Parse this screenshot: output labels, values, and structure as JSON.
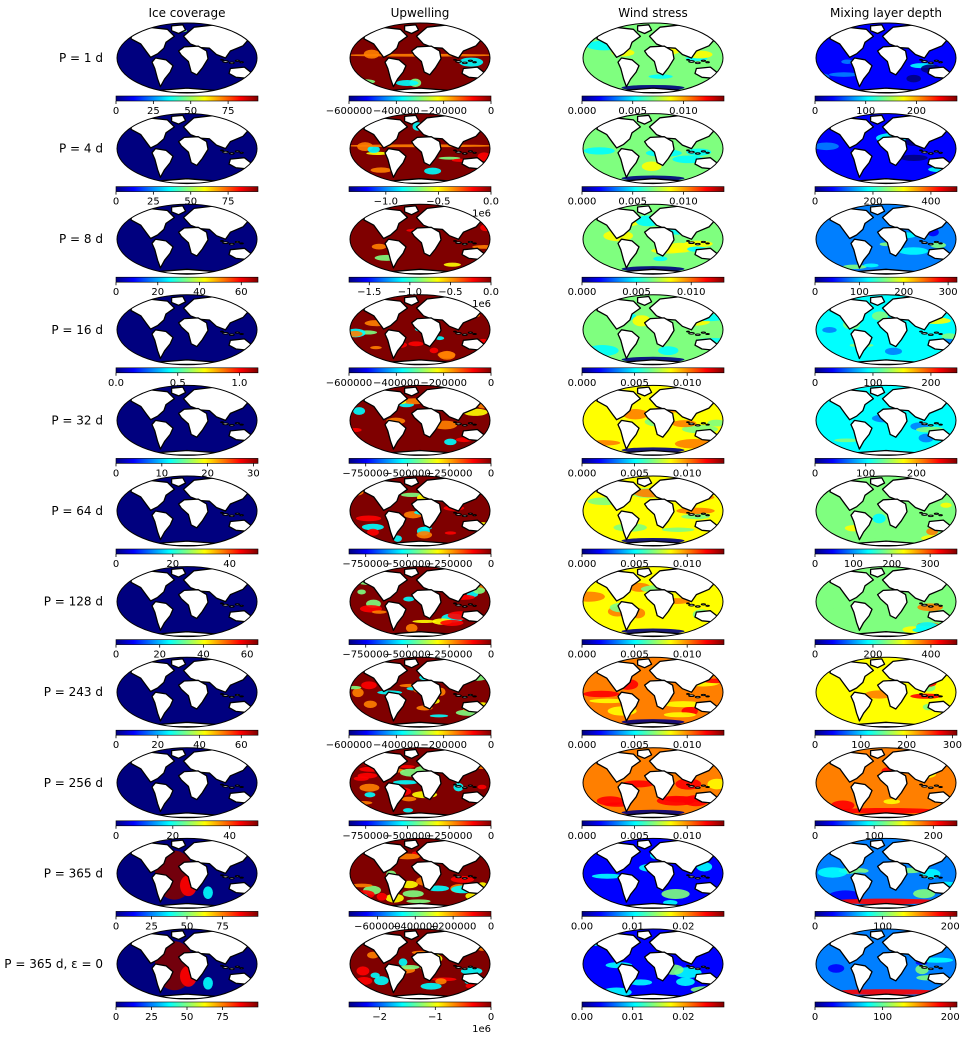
{
  "figure": {
    "columns": [
      {
        "title": "Ice coverage",
        "kind": "ice"
      },
      {
        "title": "Upwelling",
        "kind": "upwelling"
      },
      {
        "title": "Wind stress",
        "kind": "wind"
      },
      {
        "title": "Mixing layer depth",
        "kind": "mld"
      }
    ],
    "colormap": "jet",
    "colormap_colors": [
      "#00007f",
      "#0000ff",
      "#007fff",
      "#00ffff",
      "#7fff7f",
      "#ffff00",
      "#ff7f00",
      "#ff0000",
      "#7f0000"
    ],
    "land_color": "#ffffff",
    "coast_color": "#000000",
    "projection": "mollweide"
  },
  "chart_data": {
    "type": "heatmap",
    "rows": [
      {
        "label": "P = 1 d",
        "panels": [
          {
            "ticks": [
              "0",
              "25",
              "50",
              "75"
            ],
            "tick_values": [
              0,
              25,
              50,
              75
            ],
            "range": [
              0,
              95
            ],
            "offset": ""
          },
          {
            "ticks": [
              "−600000",
              "−400000",
              "−200000",
              "0"
            ],
            "tick_values": [
              -600000,
              -400000,
              -200000,
              0
            ],
            "range": [
              -600000,
              0
            ],
            "offset": ""
          },
          {
            "ticks": [
              "0.000",
              "0.005",
              "0.010"
            ],
            "tick_values": [
              0,
              0.005,
              0.01
            ],
            "range": [
              0,
              0.014
            ],
            "offset": ""
          },
          {
            "ticks": [
              "0",
              "100",
              "200"
            ],
            "tick_values": [
              0,
              100,
              200
            ],
            "range": [
              0,
              280
            ],
            "offset": ""
          }
        ]
      },
      {
        "label": "P = 4 d",
        "panels": [
          {
            "ticks": [
              "0",
              "25",
              "50",
              "75"
            ],
            "tick_values": [
              0,
              25,
              50,
              75
            ],
            "range": [
              0,
              95
            ],
            "offset": ""
          },
          {
            "ticks": [
              "−1.0",
              "−0.5",
              "0.0"
            ],
            "tick_values": [
              -1.0,
              -0.5,
              0.0
            ],
            "range": [
              -1.35,
              0
            ],
            "offset": "1e6"
          },
          {
            "ticks": [
              "0.000",
              "0.005",
              "0.010"
            ],
            "tick_values": [
              0,
              0.005,
              0.01
            ],
            "range": [
              0,
              0.014
            ],
            "offset": ""
          },
          {
            "ticks": [
              "0",
              "200",
              "400"
            ],
            "tick_values": [
              0,
              200,
              400
            ],
            "range": [
              0,
              490
            ],
            "offset": ""
          }
        ]
      },
      {
        "label": "P = 8 d",
        "panels": [
          {
            "ticks": [
              "0",
              "20",
              "40",
              "60"
            ],
            "tick_values": [
              0,
              20,
              40,
              60
            ],
            "range": [
              0,
              68
            ],
            "offset": ""
          },
          {
            "ticks": [
              "−1.5",
              "−1.0",
              "−0.5",
              "0.0"
            ],
            "tick_values": [
              -1.5,
              -1.0,
              -0.5,
              0.0
            ],
            "range": [
              -1.75,
              0
            ],
            "offset": "1e6"
          },
          {
            "ticks": [
              "0.000",
              "0.005",
              "0.010"
            ],
            "tick_values": [
              0,
              0.005,
              0.01
            ],
            "range": [
              0,
              0.013
            ],
            "offset": ""
          },
          {
            "ticks": [
              "0",
              "100",
              "200",
              "300"
            ],
            "tick_values": [
              0,
              100,
              200,
              300
            ],
            "range": [
              0,
              320
            ],
            "offset": ""
          }
        ]
      },
      {
        "label": "P = 16 d",
        "panels": [
          {
            "ticks": [
              "0.0",
              "0.5",
              "1.0"
            ],
            "tick_values": [
              0,
              0.5,
              1.0
            ],
            "range": [
              0,
              1.15
            ],
            "offset": ""
          },
          {
            "ticks": [
              "−600000",
              "−400000",
              "−200000",
              "0"
            ],
            "tick_values": [
              -600000,
              -400000,
              -200000,
              0
            ],
            "range": [
              -600000,
              0
            ],
            "offset": ""
          },
          {
            "ticks": [
              "0.000",
              "0.005",
              "0.010"
            ],
            "tick_values": [
              0,
              0.005,
              0.01
            ],
            "range": [
              0,
              0.0135
            ],
            "offset": ""
          },
          {
            "ticks": [
              "0",
              "100",
              "200"
            ],
            "tick_values": [
              0,
              100,
              200
            ],
            "range": [
              0,
              245
            ],
            "offset": ""
          }
        ]
      },
      {
        "label": "P = 32 d",
        "panels": [
          {
            "ticks": [
              "0",
              "10",
              "20",
              "30"
            ],
            "tick_values": [
              0,
              10,
              20,
              30
            ],
            "range": [
              0,
              31
            ],
            "offset": ""
          },
          {
            "ticks": [
              "−750000",
              "−500000",
              "−250000",
              "0"
            ],
            "tick_values": [
              -750000,
              -500000,
              -250000,
              0
            ],
            "range": [
              -850000,
              0
            ],
            "offset": ""
          },
          {
            "ticks": [
              "0.000",
              "0.005",
              "0.010"
            ],
            "tick_values": [
              0,
              0.005,
              0.01
            ],
            "range": [
              0,
              0.0135
            ],
            "offset": ""
          },
          {
            "ticks": [
              "0",
              "100",
              "200"
            ],
            "tick_values": [
              0,
              100,
              200
            ],
            "range": [
              0,
              280
            ],
            "offset": ""
          }
        ]
      },
      {
        "label": "P = 64 d",
        "panels": [
          {
            "ticks": [
              "0",
              "20",
              "40"
            ],
            "tick_values": [
              0,
              20,
              40
            ],
            "range": [
              0,
              50
            ],
            "offset": ""
          },
          {
            "ticks": [
              "−750000",
              "−500000",
              "−250000",
              "0"
            ],
            "tick_values": [
              -750000,
              -500000,
              -250000,
              0
            ],
            "range": [
              -850000,
              0
            ],
            "offset": ""
          },
          {
            "ticks": [
              "0.000",
              "0.005",
              "0.010"
            ],
            "tick_values": [
              0,
              0.005,
              0.01
            ],
            "range": [
              0,
              0.0135
            ],
            "offset": ""
          },
          {
            "ticks": [
              "0",
              "100",
              "200",
              "300"
            ],
            "tick_values": [
              0,
              100,
              200,
              300
            ],
            "range": [
              0,
              370
            ],
            "offset": ""
          }
        ]
      },
      {
        "label": "P = 128 d",
        "panels": [
          {
            "ticks": [
              "0",
              "20",
              "40",
              "60"
            ],
            "tick_values": [
              0,
              20,
              40,
              60
            ],
            "range": [
              0,
              65
            ],
            "offset": ""
          },
          {
            "ticks": [
              "−750000",
              "−500000",
              "−250000",
              "0"
            ],
            "tick_values": [
              -750000,
              -500000,
              -250000,
              0
            ],
            "range": [
              -850000,
              0
            ],
            "offset": ""
          },
          {
            "ticks": [
              "0.000",
              "0.005",
              "0.010"
            ],
            "tick_values": [
              0,
              0.005,
              0.01
            ],
            "range": [
              0,
              0.0135
            ],
            "offset": ""
          },
          {
            "ticks": [
              "0",
              "200",
              "400"
            ],
            "tick_values": [
              0,
              200,
              400
            ],
            "range": [
              0,
              490
            ],
            "offset": ""
          }
        ]
      },
      {
        "label": "P = 243 d",
        "panels": [
          {
            "ticks": [
              "0",
              "20",
              "40",
              "60"
            ],
            "tick_values": [
              0,
              20,
              40,
              60
            ],
            "range": [
              0,
              68
            ],
            "offset": ""
          },
          {
            "ticks": [
              "−600000",
              "−400000",
              "−200000",
              "0"
            ],
            "tick_values": [
              -600000,
              -400000,
              -200000,
              0
            ],
            "range": [
              -600000,
              0
            ],
            "offset": ""
          },
          {
            "ticks": [
              "0.000",
              "0.005",
              "0.010"
            ],
            "tick_values": [
              0,
              0.005,
              0.01
            ],
            "range": [
              0,
              0.0135
            ],
            "offset": ""
          },
          {
            "ticks": [
              "0",
              "100",
              "200",
              "300"
            ],
            "tick_values": [
              0,
              100,
              200,
              300
            ],
            "range": [
              0,
              310
            ],
            "offset": ""
          }
        ]
      },
      {
        "label": "P = 256 d",
        "panels": [
          {
            "ticks": [
              "0",
              "20",
              "40"
            ],
            "tick_values": [
              0,
              20,
              40
            ],
            "range": [
              0,
              50
            ],
            "offset": ""
          },
          {
            "ticks": [
              "−750000",
              "−500000",
              "−250000",
              "0"
            ],
            "tick_values": [
              -750000,
              -500000,
              -250000,
              0
            ],
            "range": [
              -850000,
              0
            ],
            "offset": ""
          },
          {
            "ticks": [
              "0.000",
              "0.005",
              "0.010"
            ],
            "tick_values": [
              0,
              0.005,
              0.01
            ],
            "range": [
              0,
              0.0135
            ],
            "offset": ""
          },
          {
            "ticks": [
              "0",
              "100",
              "200"
            ],
            "tick_values": [
              0,
              100,
              200
            ],
            "range": [
              0,
              240
            ],
            "offset": ""
          }
        ]
      },
      {
        "label": "P = 365 d",
        "panels": [
          {
            "ticks": [
              "0",
              "25",
              "50",
              "75"
            ],
            "tick_values": [
              0,
              25,
              50,
              75
            ],
            "range": [
              0,
              100
            ],
            "offset": ""
          },
          {
            "ticks": [
              "−600000",
              "−400000",
              "−200000",
              "0"
            ],
            "tick_values": [
              -600000,
              -400000,
              -200000,
              0
            ],
            "range": [
              -750000,
              0
            ],
            "offset": ""
          },
          {
            "ticks": [
              "0.00",
              "0.01",
              "0.02"
            ],
            "tick_values": [
              0,
              0.01,
              0.02
            ],
            "range": [
              0,
              0.028
            ],
            "offset": ""
          },
          {
            "ticks": [
              "0",
              "100",
              "200"
            ],
            "tick_values": [
              0,
              100,
              200
            ],
            "range": [
              0,
              210
            ],
            "offset": ""
          }
        ]
      },
      {
        "label": "P = 365 d, ε = 0",
        "panels": [
          {
            "ticks": [
              "0",
              "25",
              "50",
              "75"
            ],
            "tick_values": [
              0,
              25,
              50,
              75
            ],
            "range": [
              0,
              100
            ],
            "offset": ""
          },
          {
            "ticks": [
              "−2",
              "−1",
              "0"
            ],
            "tick_values": [
              -2,
              -1,
              0
            ],
            "range": [
              -2.55,
              0
            ],
            "offset": "1e6"
          },
          {
            "ticks": [
              "0.00",
              "0.01",
              "0.02"
            ],
            "tick_values": [
              0,
              0.01,
              0.02
            ],
            "range": [
              0,
              0.028
            ],
            "offset": ""
          },
          {
            "ticks": [
              "0",
              "100",
              "200"
            ],
            "tick_values": [
              0,
              100,
              200
            ],
            "range": [
              0,
              210
            ],
            "offset": ""
          }
        ]
      }
    ]
  }
}
